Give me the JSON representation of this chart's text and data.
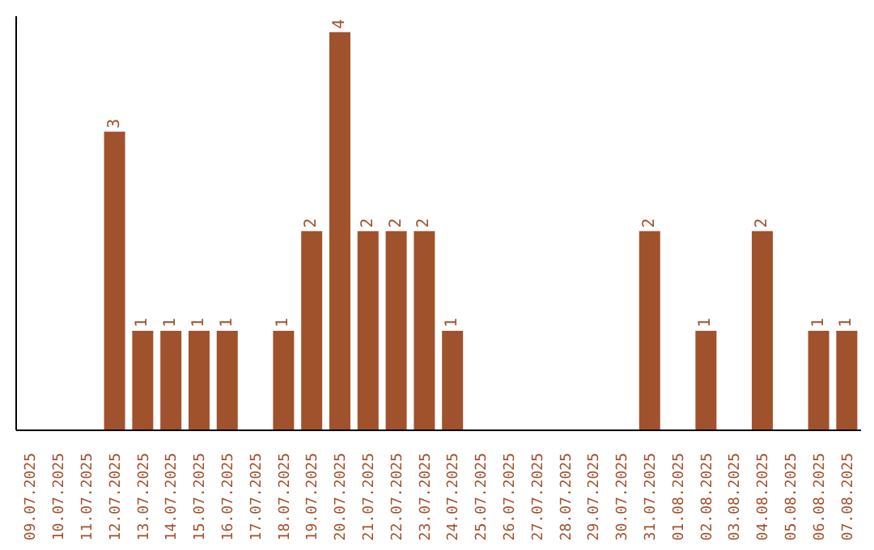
{
  "chart_data": {
    "type": "bar",
    "categories": [
      "09.07.2025",
      "10.07.2025",
      "11.07.2025",
      "12.07.2025",
      "13.07.2025",
      "14.07.2025",
      "15.07.2025",
      "16.07.2025",
      "17.07.2025",
      "18.07.2025",
      "19.07.2025",
      "20.07.2025",
      "21.07.2025",
      "22.07.2025",
      "23.07.2025",
      "24.07.2025",
      "25.07.2025",
      "26.07.2025",
      "27.07.2025",
      "28.07.2025",
      "29.07.2025",
      "30.07.2025",
      "31.07.2025",
      "01.08.2025",
      "02.08.2025",
      "03.08.2025",
      "04.08.2025",
      "05.08.2025",
      "06.08.2025",
      "07.08.2025"
    ],
    "values": [
      null,
      null,
      null,
      3,
      1,
      1,
      1,
      1,
      null,
      1,
      2,
      4,
      2,
      2,
      2,
      1,
      null,
      null,
      null,
      null,
      null,
      null,
      2,
      null,
      1,
      null,
      2,
      null,
      1,
      1
    ],
    "color": "#a0522d",
    "data_labels": true,
    "grid": false,
    "legend": false
  }
}
